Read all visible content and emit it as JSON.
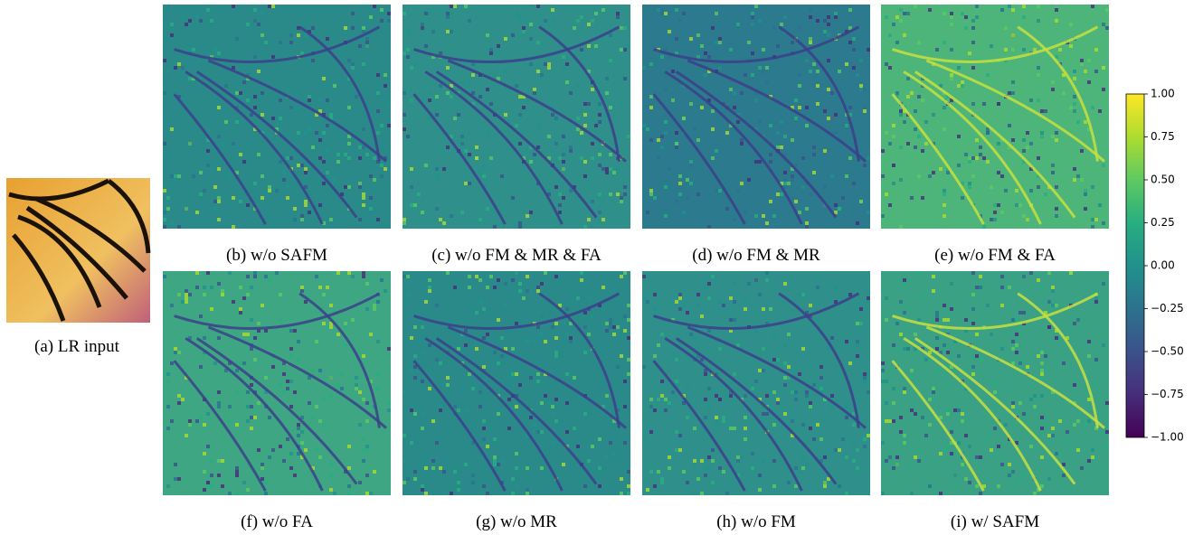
{
  "figure": {
    "input_caption": "(a) LR input",
    "panels": [
      {
        "caption": "(b) w/o SAFM"
      },
      {
        "caption": "(c) w/o FM & MR & FA"
      },
      {
        "caption": "(d) w/o FM & MR"
      },
      {
        "caption": "(e) w/o FM & FA"
      },
      {
        "caption": "(f) w/o FA"
      },
      {
        "caption": "(g) w/o MR"
      },
      {
        "caption": "(h) w/o FM"
      },
      {
        "caption": "(i) w/ SAFM"
      }
    ]
  },
  "colorbar": {
    "lim": [
      -1,
      1
    ],
    "ticks": [
      {
        "value": 1,
        "label": "1.00"
      },
      {
        "value": 0.75,
        "label": "0.75"
      },
      {
        "value": 0.5,
        "label": "0.50"
      },
      {
        "value": 0.25,
        "label": "0.25"
      },
      {
        "value": 0,
        "label": "0.00"
      },
      {
        "value": -0.25,
        "label": "−0.25"
      },
      {
        "value": -0.5,
        "label": "−0.50"
      },
      {
        "value": -0.75,
        "label": "−0.75"
      },
      {
        "value": -1,
        "label": "−1.00"
      }
    ]
  }
}
